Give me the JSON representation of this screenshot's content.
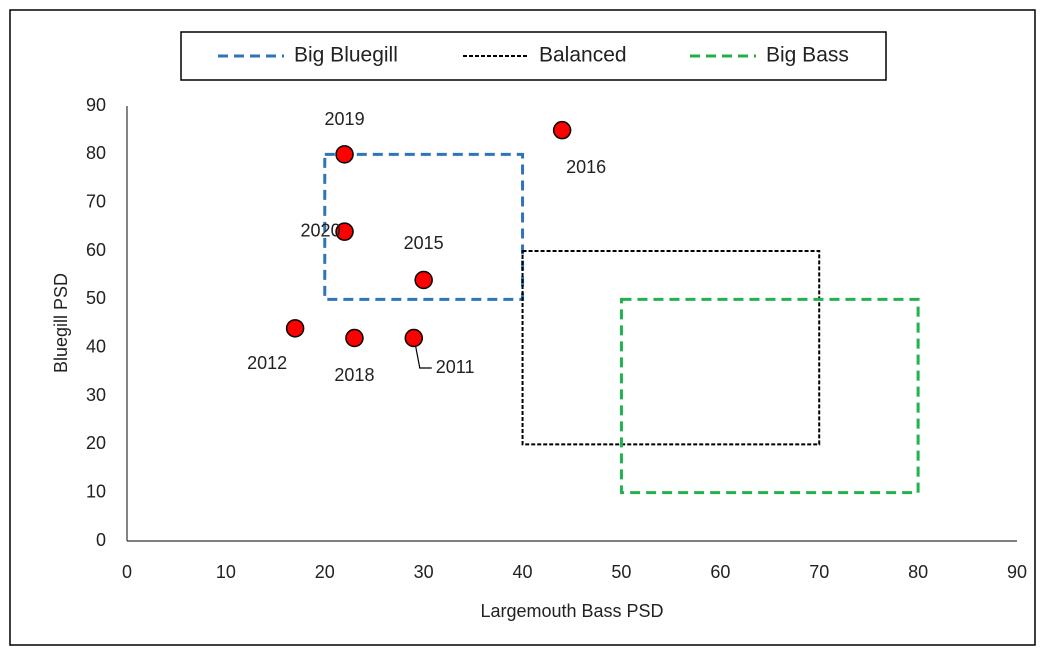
{
  "chart_data": {
    "type": "scatter",
    "xlabel": "Largemouth Bass PSD",
    "ylabel": "Bluegill PSD",
    "xlim": [
      0,
      90
    ],
    "xticks": [
      0,
      10,
      20,
      30,
      40,
      50,
      60,
      70,
      80,
      90
    ],
    "ylim": [
      0,
      90
    ],
    "yticks": [
      0,
      10,
      20,
      30,
      40,
      50,
      60,
      70,
      80,
      90
    ],
    "points": {
      "color": "#ff0000",
      "labels": [
        "2019",
        "2016",
        "2020",
        "2015",
        "2012",
        "2018",
        "2011"
      ],
      "x": [
        22,
        44,
        22,
        30,
        17,
        23,
        29
      ],
      "y": [
        80,
        85,
        64,
        54,
        44,
        42,
        42
      ]
    },
    "regions": [
      {
        "name": "Big Bluegill",
        "color": "#2e75b6",
        "dash": "10,6",
        "x": [
          20,
          40
        ],
        "y": [
          50,
          80
        ]
      },
      {
        "name": "Balanced",
        "color": "#000000",
        "dash": "4,2",
        "x": [
          40,
          70
        ],
        "y": [
          20,
          60
        ]
      },
      {
        "name": "Big Bass",
        "color": "#22b14c",
        "dash": "10,6",
        "x": [
          50,
          80
        ],
        "y": [
          10,
          50
        ]
      }
    ],
    "legend": "top"
  }
}
